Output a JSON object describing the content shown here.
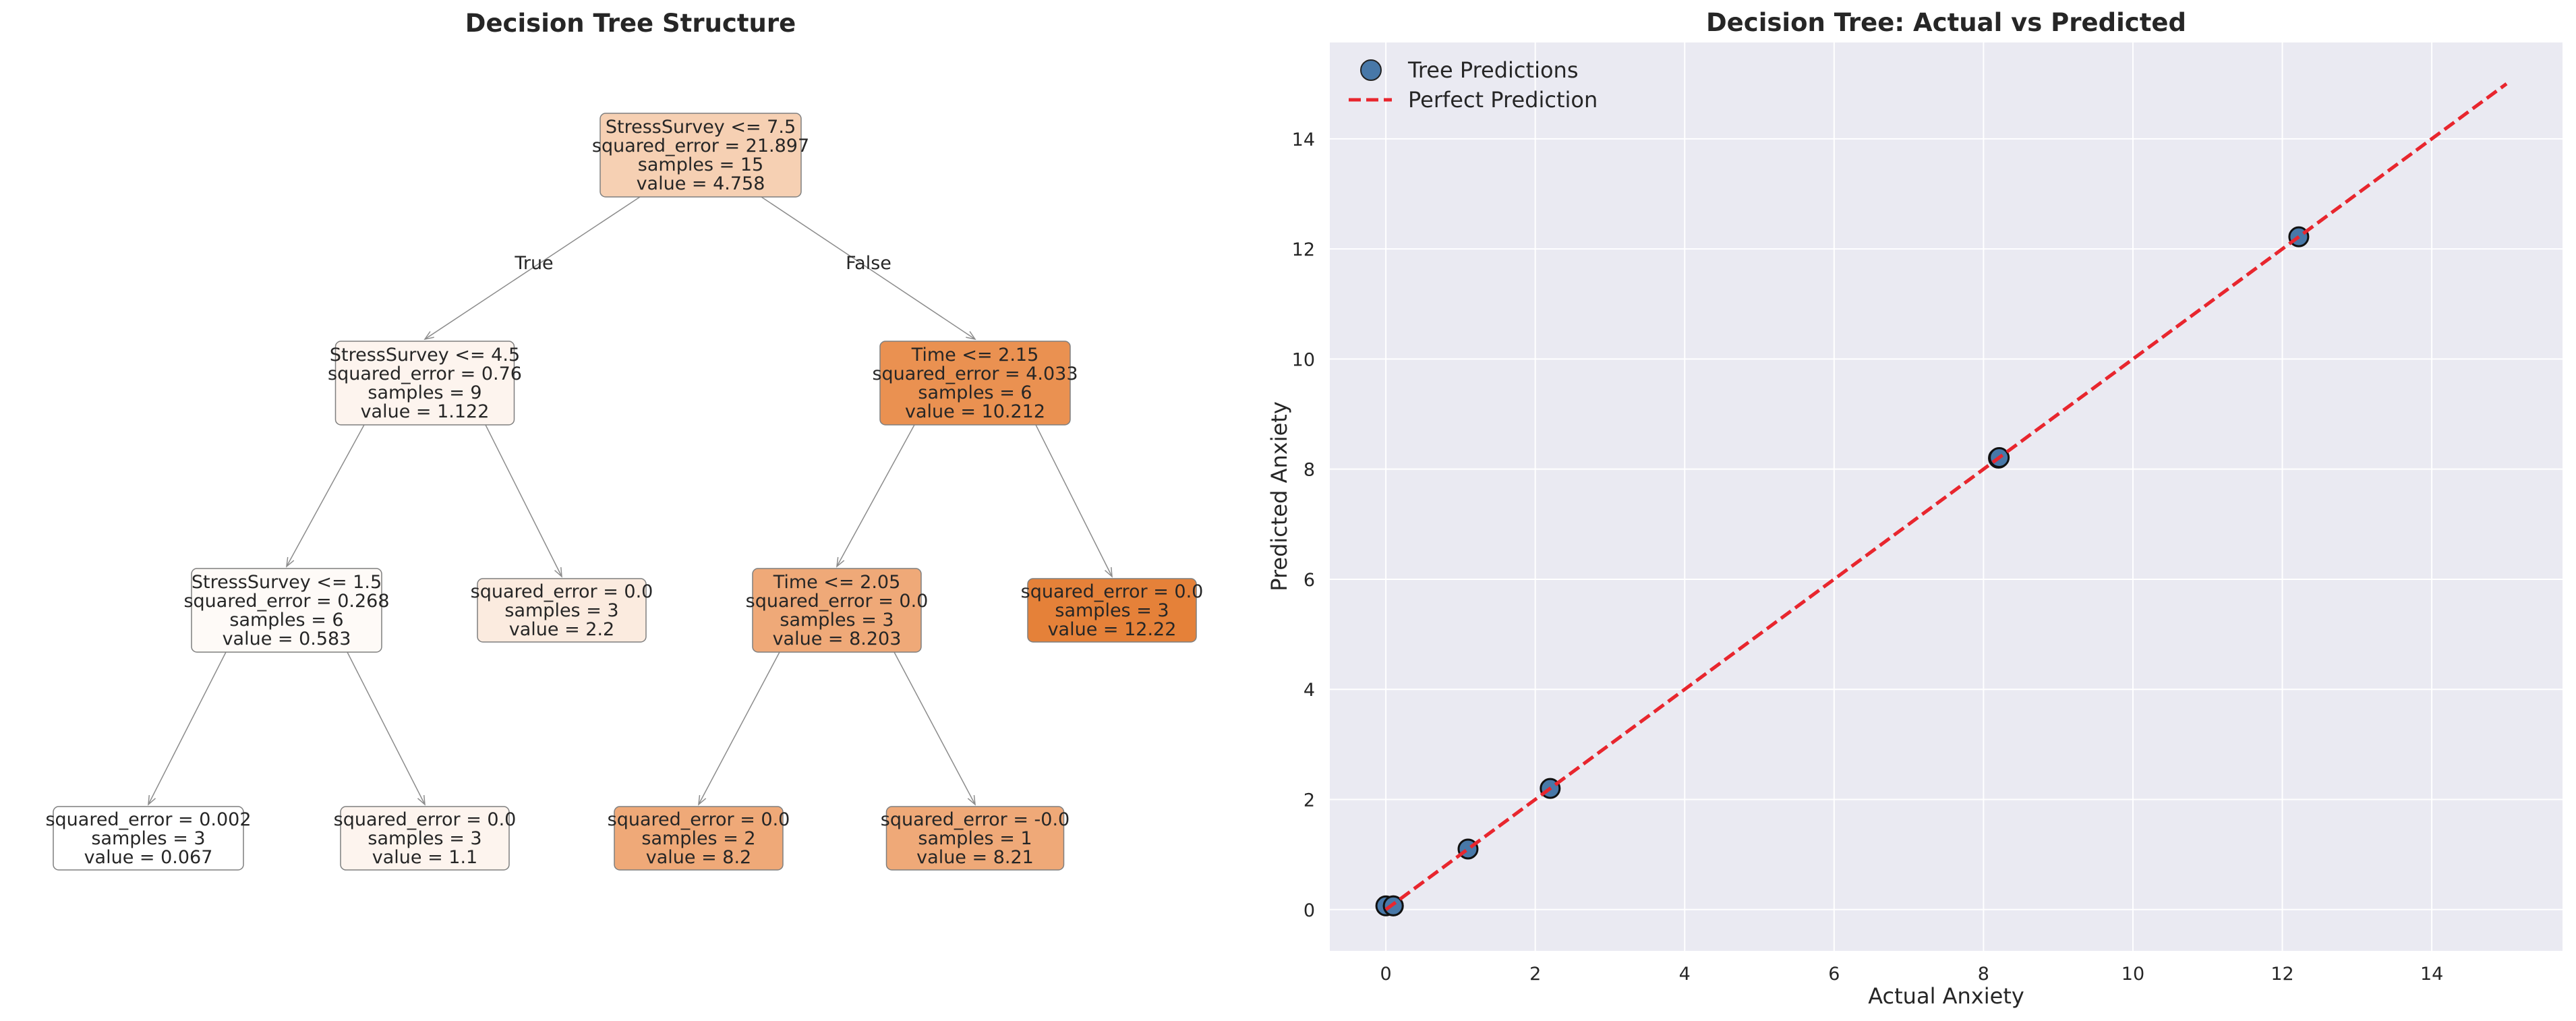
{
  "chart_data": [
    {
      "type": "tree",
      "title": "Decision Tree Structure",
      "edge_labels": {
        "left": "True",
        "right": "False"
      },
      "nodes": [
        {
          "id": "n0",
          "lines": [
            "StressSurvey <= 7.5",
            "squared_error = 21.897",
            "samples = 15",
            "value = 4.758"
          ],
          "value": 4.758,
          "color": "#f6d0b3"
        },
        {
          "id": "n1",
          "lines": [
            "StressSurvey <= 4.5",
            "squared_error = 0.76",
            "samples = 9",
            "value = 1.122"
          ],
          "value": 1.122,
          "color": "#fdf4ee"
        },
        {
          "id": "n2",
          "lines": [
            "Time <= 2.15",
            "squared_error = 4.033",
            "samples = 6",
            "value = 10.212"
          ],
          "value": 10.212,
          "color": "#ea9151"
        },
        {
          "id": "n3",
          "lines": [
            "StressSurvey <= 1.5",
            "squared_error = 0.268",
            "samples = 6",
            "value = 0.583"
          ],
          "value": 0.583,
          "color": "#fefaf7"
        },
        {
          "id": "n4",
          "lines": [
            "squared_error = 0.0",
            "samples = 3",
            "value = 2.2"
          ],
          "value": 2.2,
          "color": "#fbebdf"
        },
        {
          "id": "n5",
          "lines": [
            "Time <= 2.05",
            "squared_error = 0.0",
            "samples = 3",
            "value = 8.203"
          ],
          "value": 8.203,
          "color": "#efa978"
        },
        {
          "id": "n6",
          "lines": [
            "squared_error = 0.0",
            "samples = 3",
            "value = 12.22"
          ],
          "value": 12.22,
          "color": "#e58139"
        },
        {
          "id": "n7",
          "lines": [
            "squared_error = 0.002",
            "samples = 3",
            "value = 0.067"
          ],
          "value": 0.067,
          "color": "#ffffff"
        },
        {
          "id": "n8",
          "lines": [
            "squared_error = 0.0",
            "samples = 3",
            "value = 1.1"
          ],
          "value": 1.1,
          "color": "#fdf4ee"
        },
        {
          "id": "n9",
          "lines": [
            "squared_error = 0.0",
            "samples = 2",
            "value = 8.2"
          ],
          "value": 8.2,
          "color": "#efa978"
        },
        {
          "id": "n10",
          "lines": [
            "squared_error = -0.0",
            "samples = 1",
            "value = 8.21"
          ],
          "value": 8.21,
          "color": "#efa978"
        }
      ],
      "edges": [
        [
          "n0",
          "n1"
        ],
        [
          "n0",
          "n2"
        ],
        [
          "n1",
          "n3"
        ],
        [
          "n1",
          "n4"
        ],
        [
          "n2",
          "n5"
        ],
        [
          "n2",
          "n6"
        ],
        [
          "n3",
          "n7"
        ],
        [
          "n3",
          "n8"
        ],
        [
          "n5",
          "n9"
        ],
        [
          "n5",
          "n10"
        ]
      ]
    },
    {
      "type": "scatter",
      "title": "Decision Tree: Actual vs Predicted",
      "xlabel": "Actual Anxiety",
      "ylabel": "Predicted Anxiety",
      "xlim": [
        -0.75,
        15.75
      ],
      "ylim": [
        -0.75,
        15.75
      ],
      "xticks": [
        0,
        2,
        4,
        6,
        8,
        10,
        12,
        14
      ],
      "yticks": [
        0,
        2,
        4,
        6,
        8,
        10,
        12,
        14
      ],
      "grid": true,
      "legend_position": "top-left",
      "background_color": "#eaeaf2",
      "series": [
        {
          "name": "Tree Predictions",
          "kind": "scatter",
          "color": "#4878a8",
          "points": [
            {
              "x": 0.0,
              "y": 0.067
            },
            {
              "x": 0.1,
              "y": 0.067
            },
            {
              "x": 0.1,
              "y": 0.067
            },
            {
              "x": 1.1,
              "y": 1.1
            },
            {
              "x": 2.2,
              "y": 2.2
            },
            {
              "x": 8.2,
              "y": 8.2
            },
            {
              "x": 8.21,
              "y": 8.21
            },
            {
              "x": 12.22,
              "y": 12.22
            }
          ]
        },
        {
          "name": "Perfect Prediction",
          "kind": "line",
          "dash": true,
          "color": "#e8262e",
          "points": [
            {
              "x": 0,
              "y": 0
            },
            {
              "x": 15,
              "y": 15
            }
          ]
        }
      ]
    }
  ]
}
